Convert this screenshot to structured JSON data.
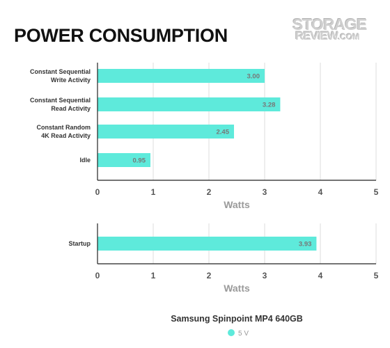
{
  "title": "POWER CONSUMPTION",
  "logo": {
    "line1": "STORAGE",
    "line2": "REVIEW",
    "line2_suffix": ".COM"
  },
  "colors": {
    "bar": "#5eeadb",
    "axis": "#222222",
    "grid": "#dddddd"
  },
  "chart_data": [
    {
      "type": "bar",
      "orientation": "horizontal",
      "categories": [
        "Constant Sequential\nWrite Activity",
        "Constant Sequential\nRead Activity",
        "Constant Random\n4K Read Activity",
        "Idle"
      ],
      "series": [
        {
          "name": "5 V",
          "values": [
            3.0,
            3.28,
            2.45,
            0.95
          ]
        }
      ],
      "value_labels": [
        "3.00",
        "3.28",
        "2.45",
        "0.95"
      ],
      "xlim": [
        0,
        5
      ],
      "xticks": [
        "0",
        "1",
        "2",
        "3",
        "4",
        "5"
      ],
      "xlabel": "Watts",
      "grid": true
    },
    {
      "type": "bar",
      "orientation": "horizontal",
      "categories": [
        "Startup"
      ],
      "series": [
        {
          "name": "5 V",
          "values": [
            3.93
          ]
        }
      ],
      "value_labels": [
        "3.93"
      ],
      "xlim": [
        0,
        5
      ],
      "xticks": [
        "0",
        "1",
        "2",
        "3",
        "4",
        "5"
      ],
      "xlabel": "Watts",
      "grid": true
    }
  ],
  "footer": {
    "title": "Samsung Spinpoint MP4 640GB",
    "legend": [
      {
        "label": "5 V",
        "color": "#5eeadb"
      }
    ]
  }
}
